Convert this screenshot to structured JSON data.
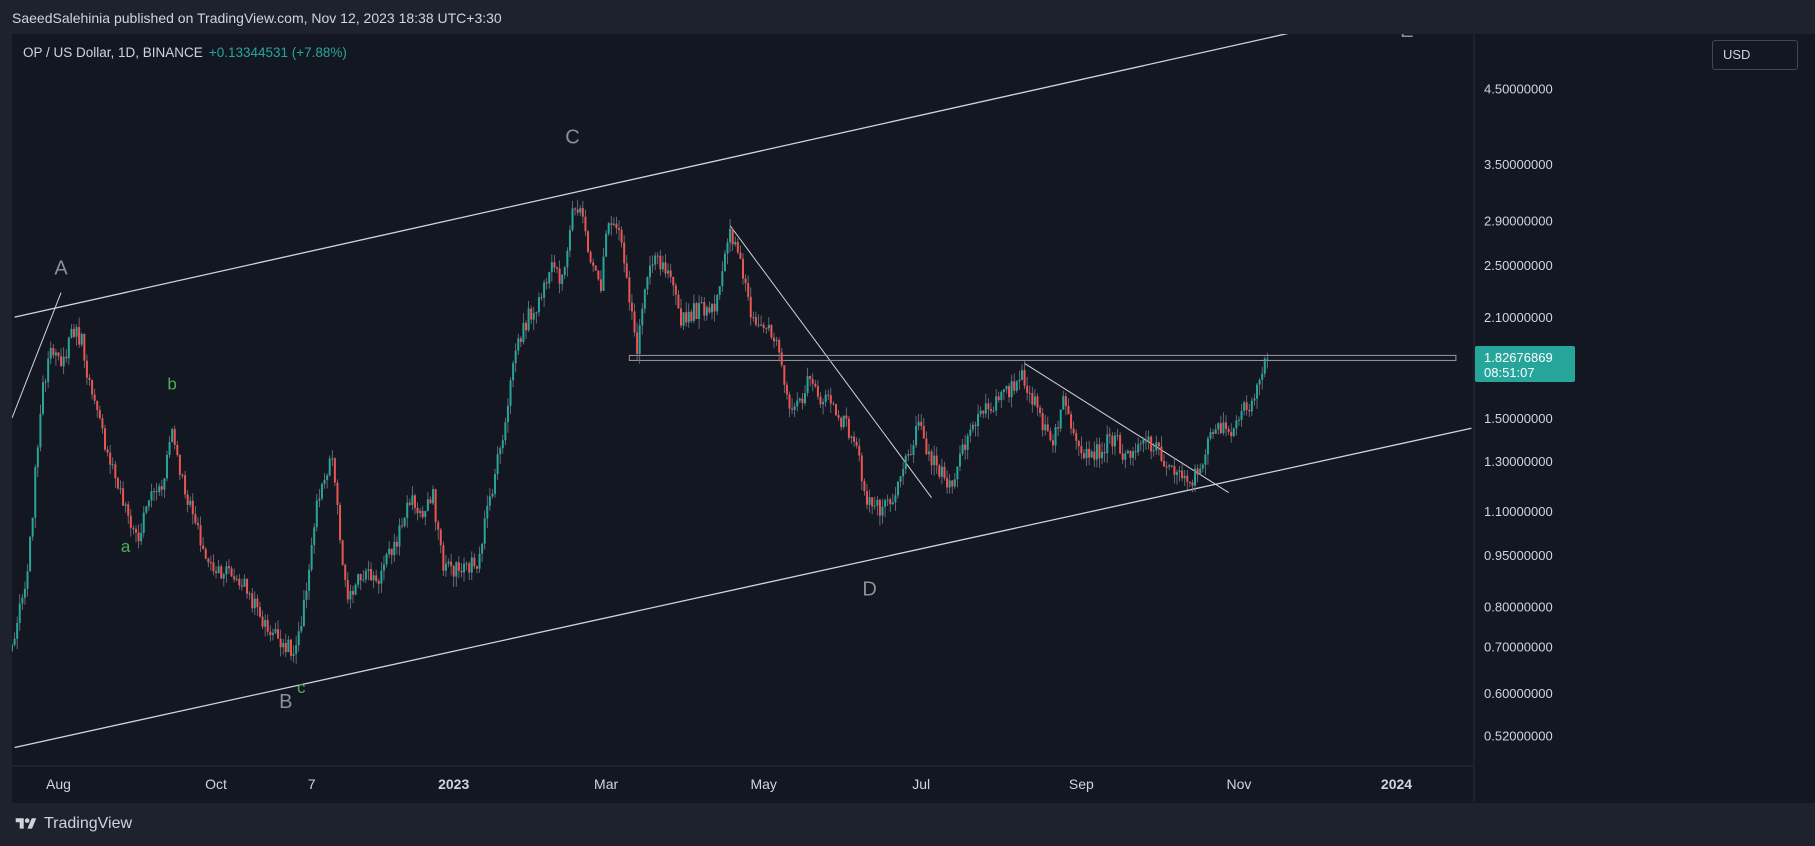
{
  "header": {
    "publish_line": "SaeedSalehinia published on TradingView.com, Nov 12, 2023 18:38 UTC+3:30"
  },
  "symbol": {
    "title": "OP / US Dollar, 1D, BINANCE",
    "change": "+0.13344531 (+7.88%)"
  },
  "currency_button": "USD",
  "price_label": {
    "value": "1.82676869",
    "countdown": "08:51:07",
    "color": "#26a69a"
  },
  "footer": {
    "brand": "TradingView"
  },
  "colors": {
    "background": "#131722",
    "up": "#26a69a",
    "down": "#ef5350",
    "line": "#d1d4dc",
    "axis_text": "#d1d4dc",
    "wave_major": "#8c8f96",
    "wave_minor": "#4caf50"
  },
  "chart_data": {
    "type": "candlestick",
    "scale": "log",
    "y_ticks": [
      "4.50000000",
      "3.50000000",
      "2.90000000",
      "2.50000000",
      "2.10000000",
      "1.50000000",
      "1.30000000",
      "1.10000000",
      "0.95000000",
      "0.80000000",
      "0.70000000",
      "0.60000000",
      "0.52000000"
    ],
    "x_ticks": [
      {
        "label": "Aug",
        "date": "2022-08-01",
        "bold": false
      },
      {
        "label": "Oct",
        "date": "2022-10-01",
        "bold": false
      },
      {
        "label": "7",
        "date": "2022-11-07",
        "bold": false
      },
      {
        "label": "2023",
        "date": "2023-01-01",
        "bold": true
      },
      {
        "label": "Mar",
        "date": "2023-03-01",
        "bold": false
      },
      {
        "label": "May",
        "date": "2023-05-01",
        "bold": false
      },
      {
        "label": "Jul",
        "date": "2023-07-01",
        "bold": false
      },
      {
        "label": "Sep",
        "date": "2023-09-01",
        "bold": false
      },
      {
        "label": "Nov",
        "date": "2023-11-01",
        "bold": false
      },
      {
        "label": "2024",
        "date": "2024-01-01",
        "bold": true
      }
    ],
    "x_range": [
      "2022-07-14",
      "2024-01-31"
    ],
    "y_range": [
      0.47,
      5.4
    ],
    "price_path": [
      [
        "2022-07-14",
        0.7
      ],
      [
        "2022-07-20",
        0.88
      ],
      [
        "2022-07-25",
        1.55
      ],
      [
        "2022-07-29",
        1.95
      ],
      [
        "2022-08-02",
        1.75
      ],
      [
        "2022-08-06",
        2.02
      ],
      [
        "2022-08-10",
        1.95
      ],
      [
        "2022-08-14",
        1.6
      ],
      [
        "2022-08-20",
        1.35
      ],
      [
        "2022-08-27",
        1.1
      ],
      [
        "2022-09-01",
        1.0
      ],
      [
        "2022-09-05",
        1.15
      ],
      [
        "2022-09-10",
        1.2
      ],
      [
        "2022-09-14",
        1.45
      ],
      [
        "2022-09-18",
        1.22
      ],
      [
        "2022-09-23",
        1.05
      ],
      [
        "2022-09-28",
        0.92
      ],
      [
        "2022-10-05",
        0.9
      ],
      [
        "2022-10-12",
        0.86
      ],
      [
        "2022-10-20",
        0.75
      ],
      [
        "2022-10-26",
        0.72
      ],
      [
        "2022-10-31",
        0.68
      ],
      [
        "2022-11-03",
        0.74
      ],
      [
        "2022-11-06",
        0.92
      ],
      [
        "2022-11-09",
        1.12
      ],
      [
        "2022-11-12",
        1.2
      ],
      [
        "2022-11-15",
        1.32
      ],
      [
        "2022-11-18",
        1.0
      ],
      [
        "2022-11-21",
        0.8
      ],
      [
        "2022-11-25",
        0.9
      ],
      [
        "2022-12-03",
        0.88
      ],
      [
        "2022-12-10",
        1.0
      ],
      [
        "2022-12-15",
        1.15
      ],
      [
        "2022-12-20",
        1.08
      ],
      [
        "2022-12-24",
        1.15
      ],
      [
        "2022-12-28",
        0.92
      ],
      [
        "2023-01-04",
        0.9
      ],
      [
        "2023-01-10",
        0.93
      ],
      [
        "2023-01-16",
        1.2
      ],
      [
        "2023-01-20",
        1.42
      ],
      [
        "2023-01-25",
        1.9
      ],
      [
        "2023-01-30",
        2.1
      ],
      [
        "2023-02-04",
        2.25
      ],
      [
        "2023-02-08",
        2.6
      ],
      [
        "2023-02-12",
        2.35
      ],
      [
        "2023-02-16",
        3.05
      ],
      [
        "2023-02-20",
        2.9
      ],
      [
        "2023-02-24",
        2.45
      ],
      [
        "2023-02-27",
        2.35
      ],
      [
        "2023-03-02",
        2.95
      ],
      [
        "2023-03-06",
        2.85
      ],
      [
        "2023-03-10",
        2.2
      ],
      [
        "2023-03-13",
        1.9
      ],
      [
        "2023-03-16",
        2.3
      ],
      [
        "2023-03-20",
        2.55
      ],
      [
        "2023-03-25",
        2.4
      ],
      [
        "2023-03-30",
        2.1
      ],
      [
        "2023-04-05",
        2.15
      ],
      [
        "2023-04-12",
        2.2
      ],
      [
        "2023-04-18",
        2.75
      ],
      [
        "2023-04-22",
        2.55
      ],
      [
        "2023-04-26",
        2.15
      ],
      [
        "2023-05-01",
        2.05
      ],
      [
        "2023-05-06",
        1.9
      ],
      [
        "2023-05-10",
        1.6
      ],
      [
        "2023-05-14",
        1.55
      ],
      [
        "2023-05-18",
        1.7
      ],
      [
        "2023-05-22",
        1.62
      ],
      [
        "2023-05-26",
        1.6
      ],
      [
        "2023-05-30",
        1.52
      ],
      [
        "2023-06-05",
        1.4
      ],
      [
        "2023-06-10",
        1.15
      ],
      [
        "2023-06-15",
        1.1
      ],
      [
        "2023-06-20",
        1.12
      ],
      [
        "2023-06-25",
        1.3
      ],
      [
        "2023-06-30",
        1.45
      ],
      [
        "2023-07-05",
        1.3
      ],
      [
        "2023-07-12",
        1.2
      ],
      [
        "2023-07-18",
        1.38
      ],
      [
        "2023-07-24",
        1.55
      ],
      [
        "2023-07-30",
        1.58
      ],
      [
        "2023-08-05",
        1.65
      ],
      [
        "2023-08-09",
        1.75
      ],
      [
        "2023-08-13",
        1.6
      ],
      [
        "2023-08-17",
        1.48
      ],
      [
        "2023-08-21",
        1.4
      ],
      [
        "2023-08-25",
        1.58
      ],
      [
        "2023-08-29",
        1.45
      ],
      [
        "2023-09-02",
        1.35
      ],
      [
        "2023-09-08",
        1.34
      ],
      [
        "2023-09-14",
        1.42
      ],
      [
        "2023-09-18",
        1.3
      ],
      [
        "2023-09-22",
        1.33
      ],
      [
        "2023-09-26",
        1.4
      ],
      [
        "2023-10-01",
        1.33
      ],
      [
        "2023-10-07",
        1.25
      ],
      [
        "2023-10-12",
        1.2
      ],
      [
        "2023-10-16",
        1.25
      ],
      [
        "2023-10-20",
        1.38
      ],
      [
        "2023-10-24",
        1.45
      ],
      [
        "2023-10-28",
        1.44
      ],
      [
        "2023-11-02",
        1.52
      ],
      [
        "2023-11-06",
        1.6
      ],
      [
        "2023-11-09",
        1.75
      ],
      [
        "2023-11-12",
        1.83
      ]
    ],
    "channel": {
      "upper": [
        [
          "2022-07-15",
          2.1
        ],
        [
          "2024-01-30",
          6.2
        ]
      ],
      "lower": [
        [
          "2022-07-15",
          0.5
        ],
        [
          "2024-01-30",
          1.45
        ]
      ]
    },
    "resistance": {
      "level": 1.83,
      "from": "2023-03-10",
      "to": "2024-01-24"
    },
    "trendlines": [
      [
        [
          "2022-07-14",
          1.5
        ],
        [
          "2022-08-02",
          2.28
        ]
      ],
      [
        [
          "2023-04-18",
          2.85
        ],
        [
          "2023-07-05",
          1.15
        ]
      ],
      [
        [
          "2023-08-10",
          1.8
        ],
        [
          "2023-10-28",
          1.17
        ]
      ]
    ],
    "wave_labels": [
      {
        "text": "A",
        "date": "2022-08-02",
        "price": 2.42,
        "style": "major"
      },
      {
        "text": "B",
        "date": "2022-10-28",
        "price": 0.57,
        "style": "major"
      },
      {
        "text": "C",
        "date": "2023-02-16",
        "price": 3.75,
        "style": "major"
      },
      {
        "text": "D",
        "date": "2023-06-11",
        "price": 0.83,
        "style": "major"
      },
      {
        "text": "E",
        "date": "2024-01-05",
        "price": 5.35,
        "style": "major"
      },
      {
        "text": "a",
        "date": "2022-08-27",
        "price": 0.96,
        "style": "minor"
      },
      {
        "text": "b",
        "date": "2022-09-14",
        "price": 1.65,
        "style": "minor"
      },
      {
        "text": "c",
        "date": "2022-11-03",
        "price": 0.6,
        "style": "minor"
      }
    ]
  }
}
